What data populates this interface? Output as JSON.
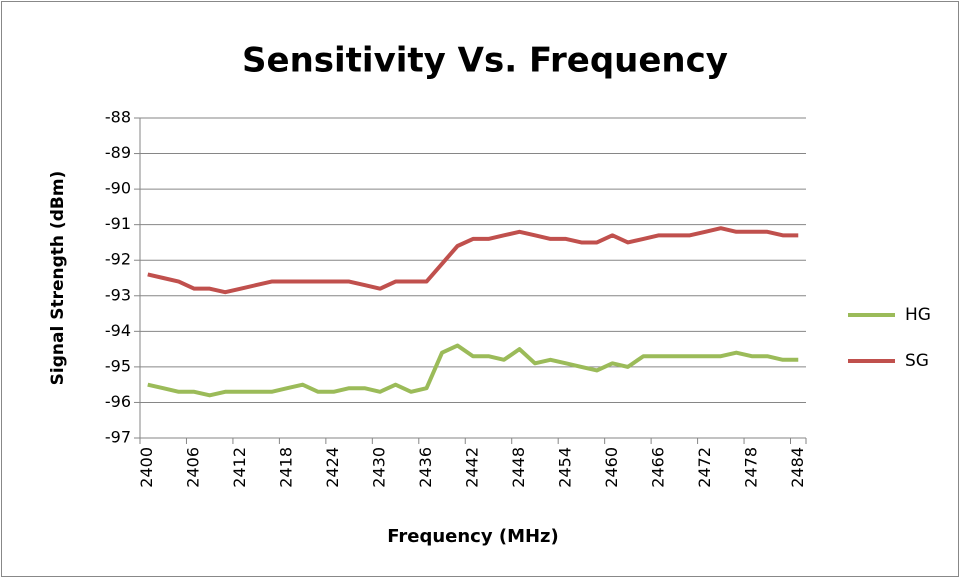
{
  "chart_data": {
    "type": "line",
    "title": "Sensitivity Vs. Frequency",
    "xlabel": "Frequency (MHz)",
    "ylabel": "Signal Strength (dBm)",
    "categories": [
      "2400",
      null,
      null,
      "2406",
      null,
      null,
      "2412",
      null,
      null,
      "2418",
      null,
      null,
      "2424",
      null,
      null,
      "2430",
      null,
      null,
      "2436",
      null,
      null,
      "2442",
      null,
      null,
      "2448",
      null,
      null,
      "2454",
      null,
      null,
      "2460",
      null,
      null,
      "2466",
      null,
      null,
      "2472",
      null,
      null,
      "2478",
      null,
      null,
      "2484"
    ],
    "series": [
      {
        "name": "HG",
        "color": "#9bbb59",
        "values": [
          -95.5,
          -95.6,
          -95.7,
          -95.7,
          -95.8,
          -95.7,
          -95.7,
          -95.7,
          -95.7,
          -95.6,
          -95.5,
          -95.7,
          -95.7,
          -95.6,
          -95.6,
          -95.7,
          -95.5,
          -95.7,
          -95.6,
          -94.6,
          -94.4,
          -94.7,
          -94.7,
          -94.8,
          -94.5,
          -94.9,
          -94.8,
          -94.9,
          -95.0,
          -95.1,
          -94.9,
          -95.0,
          -94.7,
          -94.7,
          -94.7,
          -94.7,
          -94.7,
          -94.7,
          -94.6,
          -94.7,
          -94.7,
          -94.8,
          -94.8
        ]
      },
      {
        "name": "SG",
        "color": "#c0504d",
        "values": [
          -92.4,
          -92.5,
          -92.6,
          -92.8,
          -92.8,
          -92.9,
          -92.8,
          -92.7,
          -92.6,
          -92.6,
          -92.6,
          -92.6,
          -92.6,
          -92.6,
          -92.7,
          -92.8,
          -92.6,
          -92.6,
          -92.6,
          -92.1,
          -91.6,
          -91.4,
          -91.4,
          -91.3,
          -91.2,
          -91.3,
          -91.4,
          -91.4,
          -91.5,
          -91.5,
          -91.3,
          -91.5,
          -91.4,
          -91.3,
          -91.3,
          -91.3,
          -91.2,
          -91.1,
          -91.2,
          -91.2,
          -91.2,
          -91.3,
          -91.3
        ]
      }
    ],
    "ylim": [
      -97,
      -88
    ],
    "yticks": [
      -97,
      -96,
      -95,
      -94,
      -93,
      -92,
      -91,
      -90,
      -89,
      -88
    ],
    "grid": true,
    "legend": "right"
  }
}
